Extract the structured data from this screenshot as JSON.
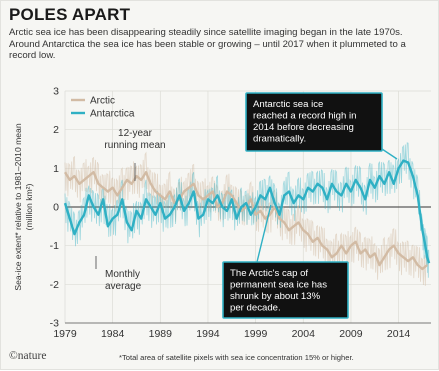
{
  "title": "POLES APART",
  "subtitle": "Arctic sea ice has been disappearing steadily since satellite imaging began in the late 1970s. Around Antarctica the sea ice has been stable or growing – until 2017 when it plummeted to a record low.",
  "footer": {
    "logo": "©nature",
    "footnote": "*Total area of satellite pixels with sea ice concentration 15% or higher."
  },
  "colors": {
    "arctic": "#d2bba4",
    "antarctica": "#2fb0c4",
    "callout_bg": "#111111",
    "callout_border": "#2fb0c4"
  },
  "annotations": {
    "running_mean": [
      "12-year",
      "running mean"
    ],
    "monthly": [
      "Monthly",
      "average"
    ],
    "antarctic_callout": [
      "Antarctic sea ice",
      "reached a record high in",
      "2014 before decreasing",
      "dramatically."
    ],
    "arctic_callout": [
      "The Arctic's cap of",
      "permanent sea ice has",
      "shrunk by about 13%",
      "per decade."
    ]
  },
  "chart_data": {
    "type": "line",
    "ylabel_lines": [
      "Sea-ice extent* relative to 1981–2010 mean",
      "(million km²)"
    ],
    "xlim": [
      1979,
      2017.4
    ],
    "ylim": [
      -3,
      3
    ],
    "xticks": [
      1979,
      1984,
      1989,
      1994,
      1999,
      2004,
      2009,
      2014
    ],
    "yticks": [
      3,
      2,
      1,
      0,
      -1,
      -2,
      -3
    ],
    "legend_position": "top-left",
    "series": [
      {
        "name": "Arctic",
        "x": [
          1979,
          1979.5,
          1980,
          1980.5,
          1981,
          1981.5,
          1982,
          1982.5,
          1983,
          1983.5,
          1984,
          1984.5,
          1985,
          1985.5,
          1986,
          1986.5,
          1987,
          1987.5,
          1988,
          1988.5,
          1989,
          1989.5,
          1990,
          1990.5,
          1991,
          1991.5,
          1992,
          1992.5,
          1993,
          1993.5,
          1994,
          1994.5,
          1995,
          1995.5,
          1996,
          1996.5,
          1997,
          1997.5,
          1998,
          1998.5,
          1999,
          1999.5,
          2000,
          2000.5,
          2001,
          2001.5,
          2002,
          2002.5,
          2003,
          2003.5,
          2004,
          2004.5,
          2005,
          2005.5,
          2006,
          2006.5,
          2007,
          2007.5,
          2008,
          2008.5,
          2009,
          2009.5,
          2010,
          2010.5,
          2011,
          2011.5,
          2012,
          2012.5,
          2013,
          2013.5,
          2014,
          2014.5,
          2015,
          2015.5,
          2016,
          2016.5,
          2017
        ],
        "y": [
          0.9,
          0.7,
          0.8,
          0.6,
          0.7,
          0.8,
          0.9,
          0.6,
          0.5,
          0.4,
          0.5,
          0.3,
          0.5,
          0.7,
          0.6,
          0.8,
          0.7,
          0.9,
          0.6,
          0.4,
          0.3,
          0.2,
          0.4,
          0.1,
          0.2,
          0.4,
          0.5,
          0.6,
          0.3,
          0.2,
          0.3,
          0.4,
          0.0,
          0.1,
          0.4,
          0.3,
          0.1,
          -0.1,
          0.0,
          0.2,
          -0.2,
          -0.1,
          -0.3,
          -0.2,
          0.0,
          -0.3,
          -0.4,
          -0.6,
          -0.5,
          -0.4,
          -0.6,
          -0.7,
          -0.9,
          -0.8,
          -1.0,
          -1.1,
          -1.3,
          -1.2,
          -1.0,
          -1.2,
          -1.0,
          -0.9,
          -1.2,
          -1.1,
          -1.3,
          -1.2,
          -1.5,
          -1.3,
          -1.1,
          -1.0,
          -1.2,
          -1.3,
          -1.4,
          -1.3,
          -1.5,
          -1.6,
          -1.5
        ]
      },
      {
        "name": "Antarctica",
        "x": [
          1979,
          1979.5,
          1980,
          1980.5,
          1981,
          1981.5,
          1982,
          1982.5,
          1983,
          1983.5,
          1984,
          1984.5,
          1985,
          1985.5,
          1986,
          1986.5,
          1987,
          1987.5,
          1988,
          1988.5,
          1989,
          1989.5,
          1990,
          1990.5,
          1991,
          1991.5,
          1992,
          1992.5,
          1993,
          1993.5,
          1994,
          1994.5,
          1995,
          1995.5,
          1996,
          1996.5,
          1997,
          1997.5,
          1998,
          1998.5,
          1999,
          1999.5,
          2000,
          2000.5,
          2001,
          2001.5,
          2002,
          2002.5,
          2003,
          2003.5,
          2004,
          2004.5,
          2005,
          2005.5,
          2006,
          2006.5,
          2007,
          2007.5,
          2008,
          2008.5,
          2009,
          2009.5,
          2010,
          2010.5,
          2011,
          2011.5,
          2012,
          2012.5,
          2013,
          2013.5,
          2014,
          2014.5,
          2015,
          2015.5,
          2016,
          2016.5,
          2016.8,
          2017,
          2017.2
        ],
        "y": [
          0.1,
          -0.3,
          -0.7,
          -0.4,
          -0.2,
          0.3,
          0.0,
          -0.2,
          0.2,
          -0.5,
          -0.3,
          -0.2,
          0.2,
          -0.4,
          -0.6,
          -0.1,
          -0.3,
          0.2,
          0.0,
          -0.2,
          0.1,
          -0.3,
          -0.2,
          0.0,
          0.3,
          -0.1,
          0.1,
          0.4,
          -0.3,
          -0.2,
          0.2,
          0.1,
          0.3,
          0.0,
          -0.1,
          0.2,
          -0.3,
          0.0,
          0.1,
          -0.2,
          0.0,
          0.3,
          0.2,
          0.5,
          0.1,
          -0.2,
          0.3,
          0.4,
          0.1,
          0.3,
          0.2,
          0.5,
          0.4,
          0.6,
          0.5,
          0.2,
          0.6,
          0.4,
          0.3,
          0.6,
          0.4,
          0.7,
          0.5,
          0.2,
          0.7,
          0.5,
          0.8,
          0.6,
          0.9,
          0.6,
          1.0,
          1.2,
          1.15,
          0.8,
          0.3,
          -0.6,
          -1.0,
          -1.3,
          -1.45
        ]
      }
    ]
  }
}
